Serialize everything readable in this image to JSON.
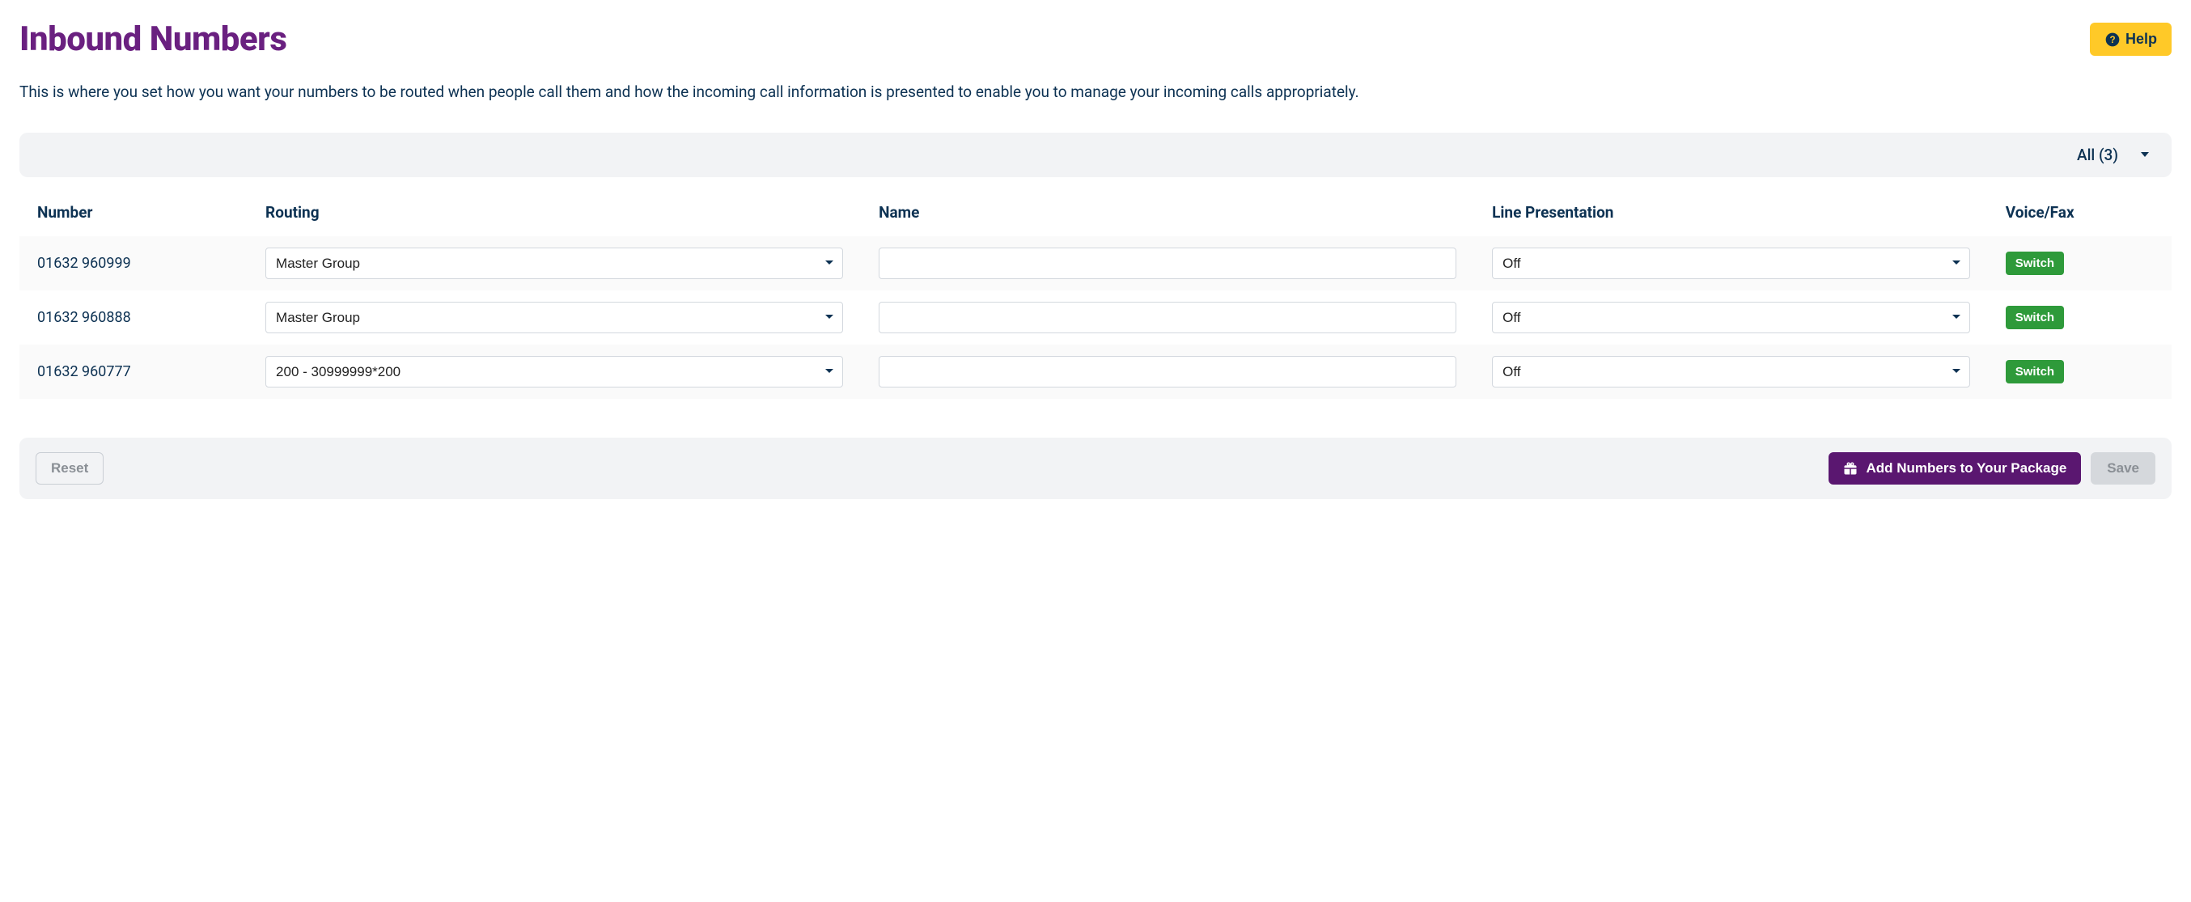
{
  "colors": {
    "title": "#6a2080",
    "text": "#0d3253",
    "help_bg": "#ffc928",
    "panel_bg": "#f2f3f5",
    "row_alt_bg": "#fafafa",
    "border": "#d3d8de",
    "switch_bg": "#2e9a3a",
    "add_bg": "#5a1770",
    "disabled_bg": "#d5d8dc",
    "disabled_text": "#8a8f95"
  },
  "header": {
    "title": "Inbound Numbers",
    "help_label": "Help"
  },
  "description": "This is where you set how you want your numbers to be routed when people call them and how the incoming call information is presented to enable you to manage your incoming calls appropriately.",
  "filter": {
    "label": "All (3)"
  },
  "table": {
    "columns": {
      "number": "Number",
      "routing": "Routing",
      "name": "Name",
      "line": "Line Presentation",
      "voicefax": "Voice/Fax"
    },
    "switch_label": "Switch",
    "rows": [
      {
        "number": "01632 960999",
        "routing": "Master Group",
        "name": "",
        "line": "Off"
      },
      {
        "number": "01632 960888",
        "routing": "Master Group",
        "name": "",
        "line": "Off"
      },
      {
        "number": "01632 960777",
        "routing": "200 - 30999999*200",
        "name": "",
        "line": "Off"
      }
    ]
  },
  "footer": {
    "reset_label": "Reset",
    "add_label": "Add Numbers to Your Package",
    "save_label": "Save"
  }
}
